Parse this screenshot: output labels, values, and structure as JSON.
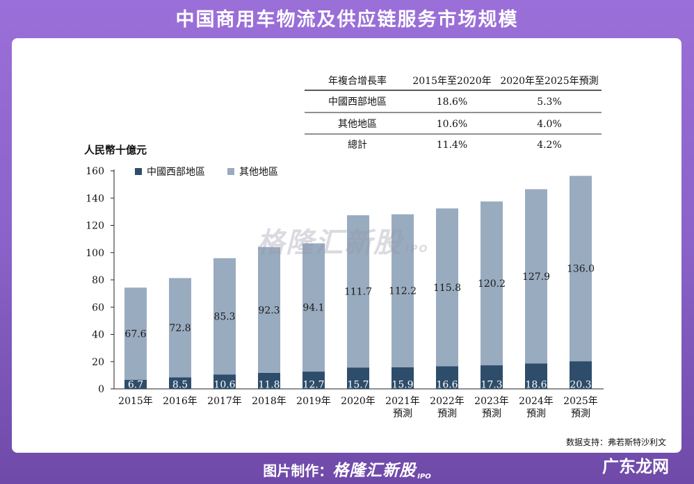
{
  "page": {
    "title": "中国商用车物流及供应链服务市场规模",
    "source": "数据支持：弗若斯特沙利文",
    "footer_prefix": "图片制作：",
    "footer_brand": "格隆汇新股",
    "footer_ipo": "IPO",
    "corner_mark": "广东龙网",
    "watermark": "格隆汇新股",
    "watermark_ipo": "IPO"
  },
  "cagr_table": {
    "headers": [
      "年複合增長率",
      "2015年至2020年",
      "2020年至2025年預測"
    ],
    "rows": [
      [
        "中國西部地區",
        "18.6%",
        "5.3%"
      ],
      [
        "其他地區",
        "10.6%",
        "4.0%"
      ],
      [
        "總計",
        "11.4%",
        "4.2%"
      ]
    ]
  },
  "chart_data": {
    "type": "bar",
    "stacked": true,
    "ylabel": "人民幣十億元",
    "ylim": [
      0,
      160
    ],
    "yticks": [
      0,
      20,
      40,
      60,
      80,
      100,
      120,
      140,
      160
    ],
    "categories": [
      [
        "2015年"
      ],
      [
        "2016年"
      ],
      [
        "2017年"
      ],
      [
        "2018年"
      ],
      [
        "2019年"
      ],
      [
        "2020年"
      ],
      [
        "2021年",
        "預測"
      ],
      [
        "2022年",
        "預測"
      ],
      [
        "2023年",
        "預測"
      ],
      [
        "2024年",
        "預測"
      ],
      [
        "2025年",
        "預測"
      ]
    ],
    "series": [
      {
        "name": "中國西部地區",
        "color": "#2e4d6b",
        "label_color": "#ffffff",
        "values": [
          6.7,
          8.5,
          10.6,
          11.8,
          12.7,
          15.7,
          15.9,
          16.6,
          17.3,
          18.6,
          20.3
        ]
      },
      {
        "name": "其他地區",
        "color": "#99abbf",
        "label_color": "#1a1a1a",
        "values": [
          67.6,
          72.8,
          85.3,
          92.3,
          94.1,
          111.7,
          112.2,
          115.8,
          120.2,
          127.9,
          136.0
        ]
      }
    ],
    "legend_position": "top-left",
    "grid": false
  }
}
